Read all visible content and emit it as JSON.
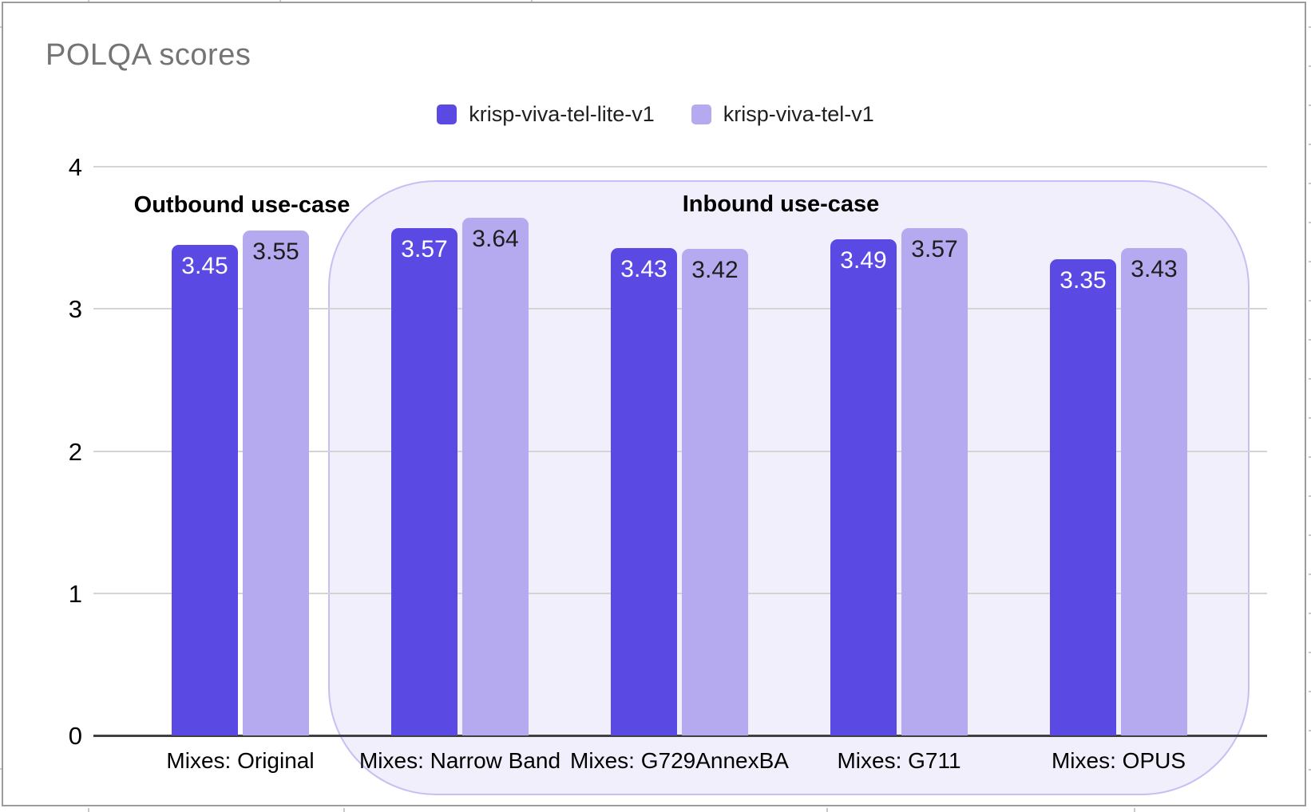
{
  "title": "POLQA scores",
  "legend": {
    "items": [
      {
        "label": "krisp-viva-tel-lite-v1",
        "color": "#5b49e4"
      },
      {
        "label": "krisp-viva-tel-v1",
        "color": "#b5aaef"
      }
    ]
  },
  "annotations": {
    "outbound": "Outbound use-case",
    "inbound": "Inbound use-case"
  },
  "colors": {
    "series_dark": "#5b49e4",
    "series_light": "#b5aaef",
    "dark_value_text": "#ffffff",
    "light_value_text": "#1d1d1d",
    "inbound_region_fill": "#f1effb",
    "inbound_region_border": "#c7bef4",
    "gridline": "#d4d4d4",
    "axis_baseline": "#404040",
    "title_text": "#747474",
    "card_border": "#9c9c9c"
  },
  "chart_data": {
    "type": "bar",
    "title": "POLQA scores",
    "categories": [
      "Mixes: Original",
      "Mixes: Narrow Band",
      "Mixes: G729AnnexBA",
      "Mixes: G711",
      "Mixes: OPUS"
    ],
    "series": [
      {
        "name": "krisp-viva-tel-lite-v1",
        "color": "#5b49e4",
        "label_color": "#ffffff",
        "values": [
          3.45,
          3.57,
          3.43,
          3.49,
          3.35
        ]
      },
      {
        "name": "krisp-viva-tel-v1",
        "color": "#b5aaef",
        "label_color": "#1d1d1d",
        "values": [
          3.55,
          3.64,
          3.42,
          3.57,
          3.43
        ]
      }
    ],
    "xlabel": "",
    "ylabel": "",
    "ylim": [
      0,
      4
    ],
    "yticks": [
      0,
      1,
      2,
      3,
      4
    ],
    "grid": true,
    "legend_position": "top-center",
    "value_labels": "inside-top",
    "annotations": [
      {
        "text": "Outbound use-case",
        "covers": [
          "Mixes: Original"
        ],
        "highlighted": false
      },
      {
        "text": "Inbound use-case",
        "covers": [
          "Mixes: Narrow Band",
          "Mixes: G729AnnexBA",
          "Mixes: G711",
          "Mixes: OPUS"
        ],
        "highlighted": true
      }
    ]
  }
}
